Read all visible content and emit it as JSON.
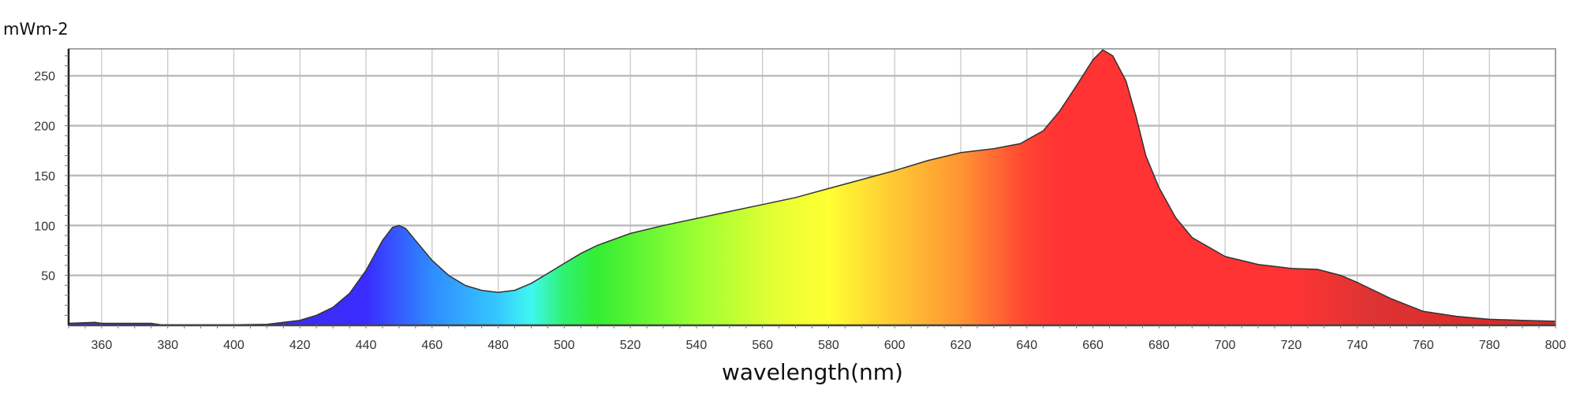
{
  "chart_data": {
    "type": "area",
    "title": "",
    "xlabel": "wavelength(nm)",
    "ylabel": "mWm-2",
    "xlim": [
      350,
      800
    ],
    "ylim": [
      0,
      277
    ],
    "grid": true,
    "legend": "none",
    "x_ticks": [
      360,
      380,
      400,
      420,
      440,
      460,
      480,
      500,
      520,
      540,
      560,
      580,
      600,
      620,
      640,
      660,
      680,
      700,
      720,
      740,
      760,
      780,
      800
    ],
    "y_ticks": [
      50,
      100,
      150,
      200,
      250
    ],
    "fill": "spectral gradient by wavelength",
    "gradient_stops": [
      {
        "nm": 415,
        "color": "#3c2cf0"
      },
      {
        "nm": 440,
        "color": "#3a2cff"
      },
      {
        "nm": 460,
        "color": "#2f8cff"
      },
      {
        "nm": 480,
        "color": "#35c8ff"
      },
      {
        "nm": 490,
        "color": "#3ff8f0"
      },
      {
        "nm": 500,
        "color": "#30f070"
      },
      {
        "nm": 510,
        "color": "#33ee33"
      },
      {
        "nm": 540,
        "color": "#9cff33"
      },
      {
        "nm": 565,
        "color": "#e8ff33"
      },
      {
        "nm": 580,
        "color": "#ffff33"
      },
      {
        "nm": 600,
        "color": "#ffc833"
      },
      {
        "nm": 620,
        "color": "#ff9433"
      },
      {
        "nm": 640,
        "color": "#ff4433"
      },
      {
        "nm": 650,
        "color": "#ff3333"
      },
      {
        "nm": 720,
        "color": "#ff3333"
      },
      {
        "nm": 745,
        "color": "#dd3333"
      },
      {
        "nm": 800,
        "color": "#dd2424"
      }
    ],
    "series": [
      {
        "x": [
          350,
          358,
          360,
          375,
          378,
          400,
          410,
          415,
          420,
          425,
          430,
          435,
          440,
          445,
          448,
          450,
          452,
          455,
          460,
          465,
          470,
          475,
          480,
          485,
          490,
          495,
          500,
          505,
          510,
          520,
          530,
          540,
          550,
          560,
          570,
          580,
          590,
          600,
          610,
          620,
          630,
          638,
          645,
          650,
          655,
          660,
          663,
          666,
          670,
          673,
          676,
          680,
          685,
          690,
          700,
          710,
          720,
          728,
          735,
          740,
          750,
          760,
          770,
          780,
          790,
          800
        ],
        "y": [
          2,
          3,
          2,
          2,
          0.5,
          0.5,
          1,
          3,
          5,
          10,
          18,
          32,
          55,
          85,
          98,
          100,
          97,
          85,
          65,
          50,
          40,
          35,
          33,
          35,
          42,
          52,
          62,
          72,
          80,
          92,
          100,
          107,
          114,
          121,
          128,
          137,
          146,
          155,
          165,
          173,
          177,
          182,
          195,
          215,
          240,
          266,
          276,
          270,
          245,
          210,
          170,
          138,
          108,
          88,
          69,
          61,
          57,
          56,
          50,
          43,
          27,
          14,
          9,
          6,
          5,
          4
        ]
      }
    ]
  }
}
